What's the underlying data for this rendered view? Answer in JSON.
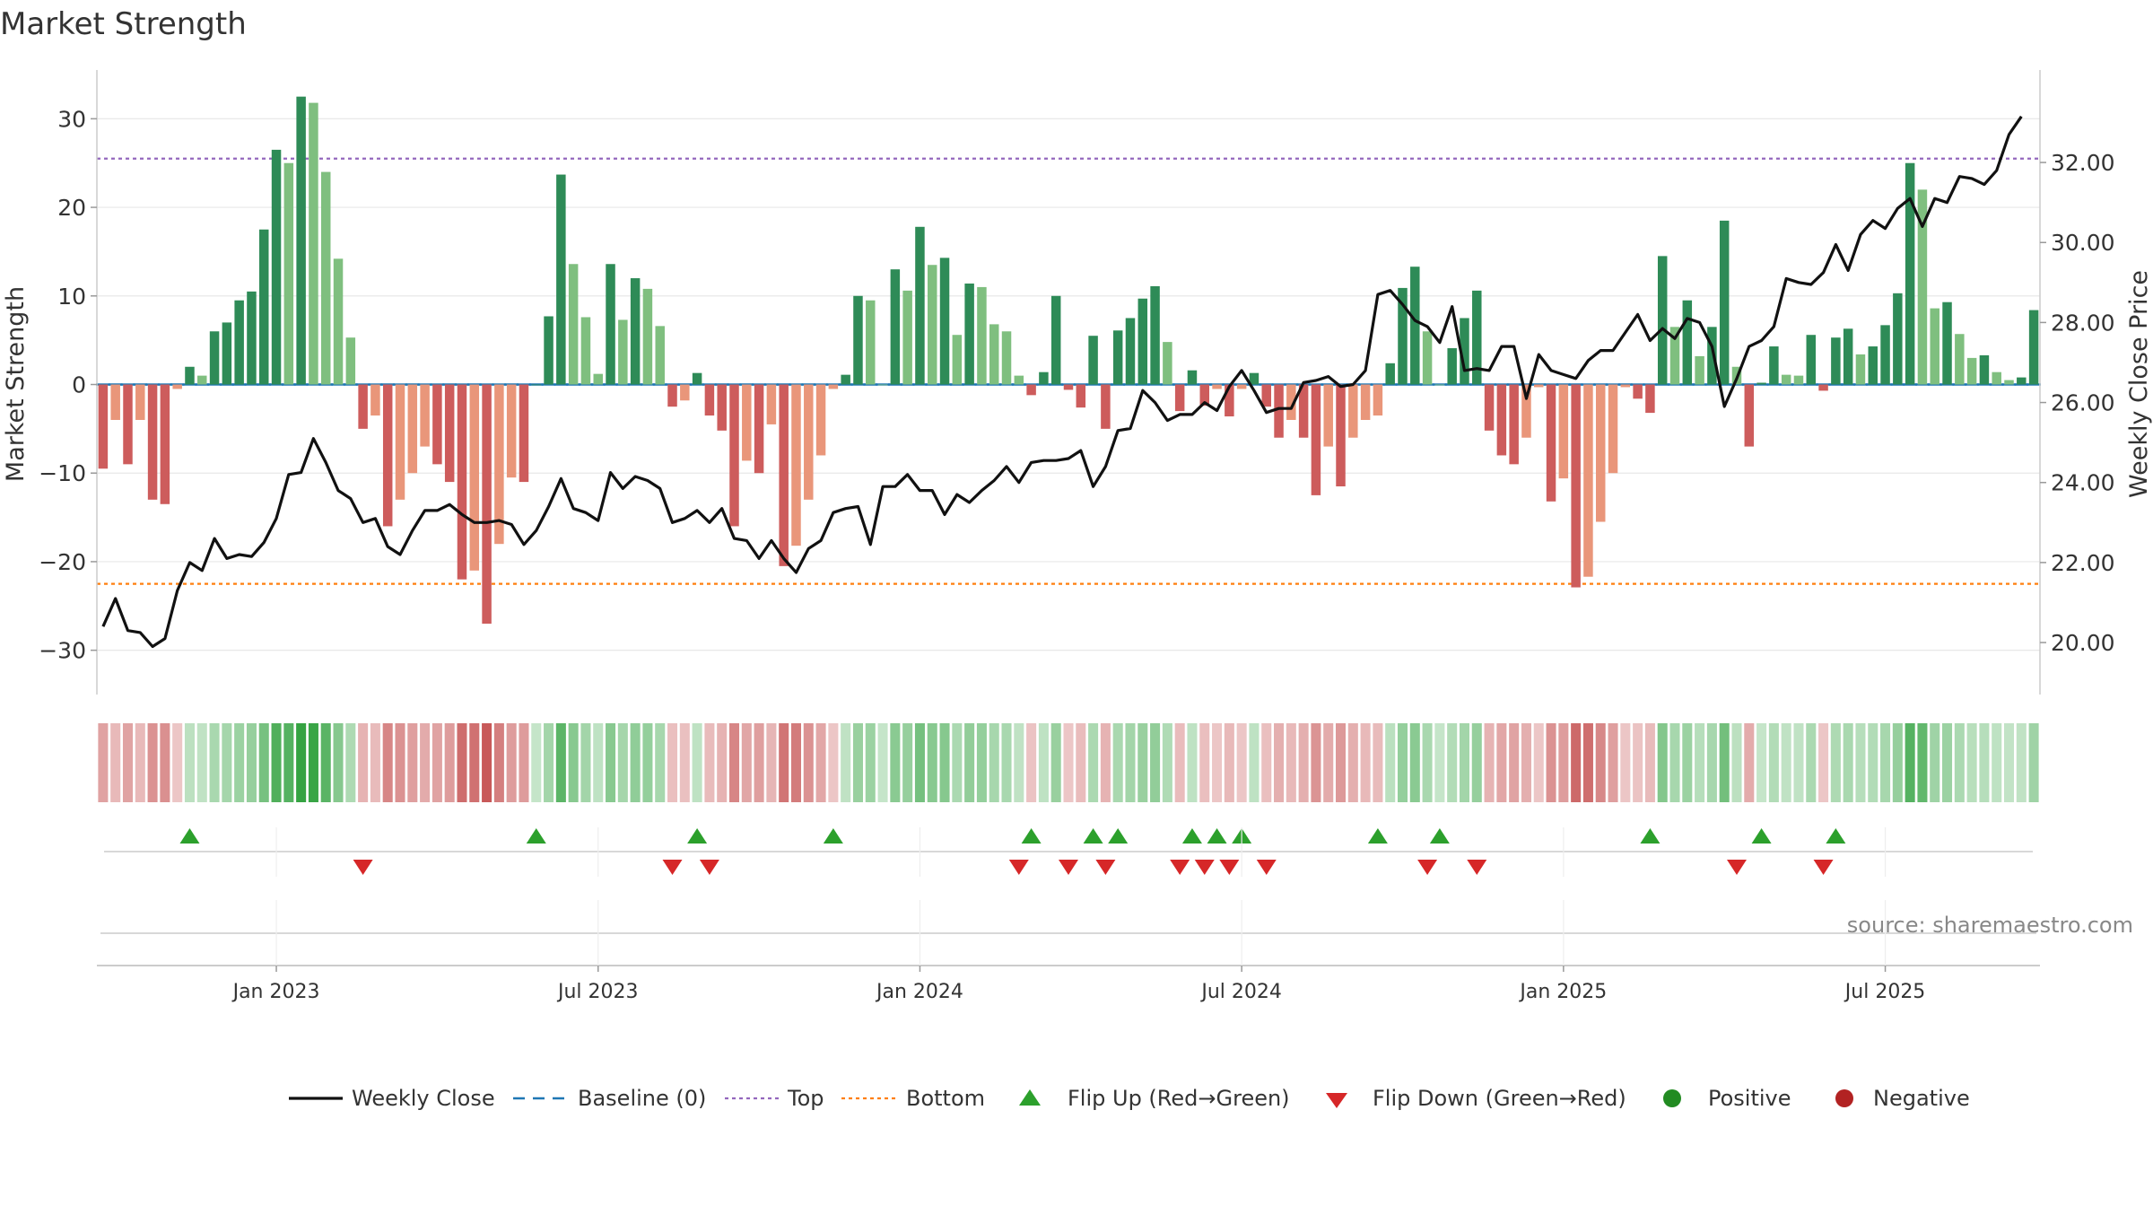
{
  "chart_data": {
    "type": "bar",
    "title": "Market Strength",
    "ylabel": "Market Strength",
    "y2label": "Weekly Close Price",
    "source": "source: sharemaestro.com",
    "ylim": [
      -35,
      35
    ],
    "y2lim": [
      18.7,
      34.2
    ],
    "yticks": [
      30,
      20,
      10,
      0,
      -10,
      -20,
      -30
    ],
    "ytick_labels": [
      "30",
      "20",
      "10",
      "0",
      "−10",
      "−20",
      "−30"
    ],
    "y2ticks": [
      32,
      30,
      28,
      26,
      24,
      22,
      20
    ],
    "y2tick_labels": [
      "32.00",
      "30.00",
      "28.00",
      "26.00",
      "24.00",
      "22.00",
      "20.00"
    ],
    "x_ticks": [
      {
        "label": "Jan 2023",
        "index": 14
      },
      {
        "label": "Jul 2023",
        "index": 40
      },
      {
        "label": "Jan 2024",
        "index": 66
      },
      {
        "label": "Jul 2024",
        "index": 92
      },
      {
        "label": "Jan 2025",
        "index": 118
      },
      {
        "label": "Jul 2025",
        "index": 144
      }
    ],
    "reference_lines": {
      "baseline": 0,
      "top": 25.5,
      "bottom": -22.5
    },
    "grid": true,
    "legend_position": "bottom",
    "colors": {
      "pos_dark": "#2e8b57",
      "pos_light": "#7fbf7f",
      "neg_dark": "#cd5c5c",
      "neg_light": "#e9967a",
      "line": "#111111",
      "baseline": "#1f77b4",
      "top": "#9467bd",
      "bottom": "#ff7f0e",
      "flip_up": "#2ca02c",
      "flip_down": "#d62728",
      "positive": "#228b22",
      "negative": "#b22222"
    },
    "series": [
      {
        "name": "Market Strength",
        "values": [
          -9.5,
          -4,
          -9,
          -4,
          -13,
          -13.5,
          -0.5,
          2,
          1,
          6,
          7,
          9.5,
          10.5,
          17.5,
          26.5,
          25,
          32.5,
          31.8,
          24,
          14.2,
          5.3,
          -5,
          -3.5,
          -16,
          -13,
          -10,
          -7,
          -9,
          -11,
          -22,
          -21,
          -27,
          -18,
          -10.5,
          -11,
          0,
          7.7,
          23.7,
          13.6,
          7.6,
          1.2,
          13.6,
          7.3,
          12,
          10.8,
          6.6,
          -2.5,
          -1.8,
          1.3,
          -3.5,
          -5.2,
          -16,
          -8.6,
          -10,
          -4.5,
          -20.5,
          -18.2,
          -13,
          -8,
          -0.5,
          1.1,
          10,
          9.5,
          0,
          13,
          10.6,
          17.8,
          13.5,
          14.3,
          5.6,
          11.4,
          11,
          6.8,
          6,
          1,
          -1.2,
          1.4,
          10,
          -0.6,
          -2.6,
          5.5,
          -5,
          6.1,
          7.5,
          9.7,
          11.1,
          4.8,
          -3,
          1.6,
          -2.4,
          -0.5,
          -3.6,
          -0.5,
          1.3,
          -2.5,
          -6,
          -4,
          -6,
          -12.5,
          -7,
          -11.5,
          -6,
          -4,
          -3.5,
          2.4,
          10.9,
          13.3,
          6,
          0,
          4.1,
          7.5,
          10.6,
          -5.2,
          -8,
          -9,
          -6,
          -0.3,
          -13.2,
          -10.6,
          -22.9,
          -21.7,
          -15.5,
          -10,
          -0.3,
          -1.6,
          -3.2,
          14.5,
          6.5,
          9.5,
          3.2,
          6.5,
          18.5,
          2,
          -7,
          0.2,
          4.3,
          1.1,
          1,
          5.6,
          -0.7,
          5.3,
          6.3,
          3.4,
          4.3,
          6.7,
          10.3,
          25,
          22,
          8.6,
          9.3,
          5.7,
          3,
          3.3,
          1.4,
          0.5,
          0.8,
          8.4
        ]
      },
      {
        "name": "Weekly Close",
        "values": [
          20.4,
          21.1,
          20.3,
          20.25,
          19.9,
          20.1,
          21.3,
          22,
          21.8,
          22.6,
          22.1,
          22.2,
          22.15,
          22.5,
          23.1,
          24.2,
          24.25,
          25.1,
          24.5,
          23.8,
          23.6,
          23,
          23.1,
          22.4,
          22.2,
          22.8,
          23.3,
          23.3,
          23.45,
          23.2,
          23,
          23,
          23.05,
          22.95,
          22.45,
          22.8,
          23.4,
          24.1,
          23.35,
          23.25,
          23.05,
          24.25,
          23.85,
          24.15,
          24.05,
          23.85,
          23,
          23.1,
          23.3,
          23,
          23.35,
          22.6,
          22.55,
          22.1,
          22.55,
          22.1,
          21.75,
          22.35,
          22.55,
          23.25,
          23.35,
          23.4,
          22.45,
          23.9,
          23.9,
          24.2,
          23.8,
          23.8,
          23.2,
          23.7,
          23.5,
          23.8,
          24.05,
          24.4,
          24,
          24.5,
          24.55,
          24.55,
          24.6,
          24.8,
          23.9,
          24.4,
          25.3,
          25.35,
          26.3,
          26,
          25.55,
          25.7,
          25.7,
          26,
          25.8,
          26.4,
          26.8,
          26.3,
          25.75,
          25.85,
          25.85,
          26.5,
          26.55,
          26.65,
          26.4,
          26.45,
          26.8,
          28.7,
          28.8,
          28.45,
          28.05,
          27.9,
          27.5,
          28.4,
          26.8,
          26.85,
          26.8,
          27.4,
          27.4,
          26.1,
          27.2,
          26.8,
          26.7,
          26.6,
          27.05,
          27.3,
          27.3,
          27.75,
          28.2,
          27.55,
          27.85,
          27.6,
          28.1,
          28,
          27.4,
          25.9,
          26.6,
          27.4,
          27.55,
          27.9,
          29.1,
          29,
          28.95,
          29.25,
          29.95,
          29.3,
          30.2,
          30.55,
          30.35,
          30.85,
          31.1,
          30.4,
          31.1,
          31,
          31.65,
          31.6,
          31.45,
          31.8,
          32.7,
          33.15
        ]
      }
    ],
    "flip_up_indices": [
      7,
      35,
      48,
      59,
      75,
      80,
      82,
      88,
      90,
      92,
      103,
      108,
      125,
      134,
      140
    ],
    "flip_down_indices": [
      21,
      46,
      49,
      74,
      78,
      81,
      87,
      89,
      91,
      94,
      107,
      111,
      132,
      139
    ],
    "legend": [
      {
        "label": "Weekly Close",
        "symbol": "line"
      },
      {
        "label": "Baseline (0)",
        "symbol": "dash"
      },
      {
        "label": "Top",
        "symbol": "dotted-top"
      },
      {
        "label": "Bottom",
        "symbol": "dotted-bottom"
      },
      {
        "label": "Flip Up (Red→Green)",
        "symbol": "triangle-up"
      },
      {
        "label": "Flip Down (Green→Red)",
        "symbol": "triangle-down"
      },
      {
        "label": "Positive",
        "symbol": "dot-positive"
      },
      {
        "label": "Negative",
        "symbol": "dot-negative"
      }
    ]
  }
}
